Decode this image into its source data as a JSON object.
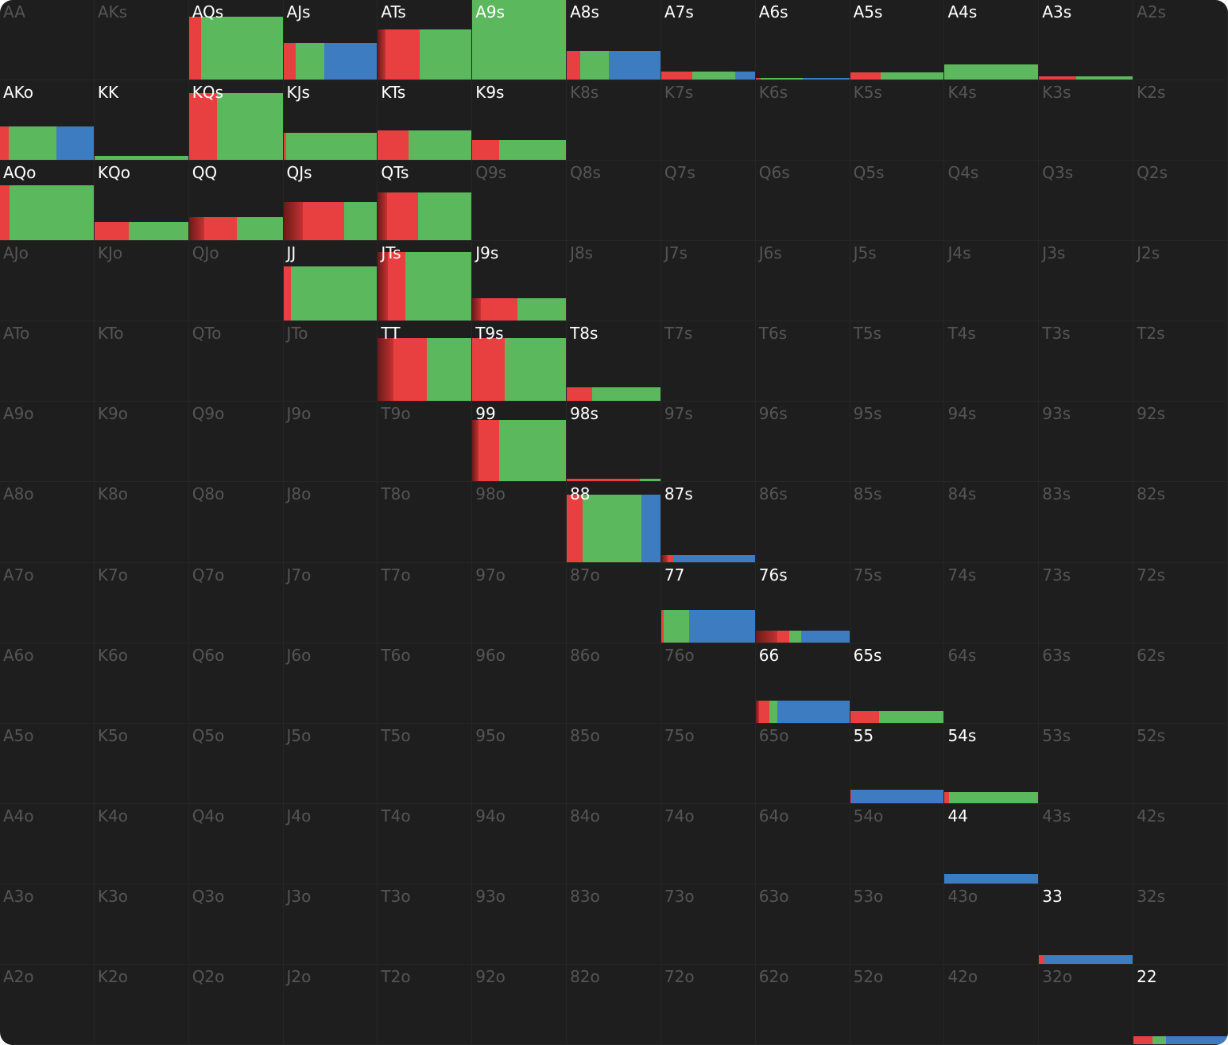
{
  "action_colors": [
    "#8a2424",
    "#e84040",
    "#5cb85c",
    "#3e7cc2"
  ],
  "rows": [
    [
      {
        "hand": "AA"
      },
      {
        "hand": "AKs"
      },
      {
        "hand": "AQs",
        "weight": 79,
        "mix": [
          0,
          13,
          87,
          0
        ]
      },
      {
        "hand": "AJs",
        "weight": 46,
        "mix": [
          0,
          13,
          31,
          56
        ]
      },
      {
        "hand": "ATs",
        "weight": 63,
        "mix": [
          8,
          37,
          55,
          0
        ]
      },
      {
        "hand": "A9s",
        "weight": 100,
        "mix": [
          0,
          0,
          100,
          0
        ]
      },
      {
        "hand": "A8s",
        "weight": 36,
        "mix": [
          0,
          14,
          31,
          55
        ]
      },
      {
        "hand": "A7s",
        "weight": 10,
        "mix": [
          0,
          33,
          46,
          21
        ]
      },
      {
        "hand": "A6s",
        "weight": 2,
        "mix": [
          0,
          5,
          45,
          50
        ]
      },
      {
        "hand": "A5s",
        "weight": 9,
        "mix": [
          0,
          33,
          67,
          0
        ]
      },
      {
        "hand": "A4s",
        "weight": 19,
        "mix": [
          0,
          0,
          100,
          0
        ]
      },
      {
        "hand": "A3s",
        "weight": 4,
        "mix": [
          0,
          40,
          60,
          0
        ]
      },
      {
        "hand": "A2s"
      }
    ],
    [
      {
        "hand": "AKo",
        "weight": 42,
        "mix": [
          0,
          9,
          51,
          40
        ]
      },
      {
        "hand": "KK",
        "weight": 5,
        "mix": [
          0,
          0,
          100,
          0
        ]
      },
      {
        "hand": "KQs",
        "weight": 84,
        "mix": [
          0,
          30,
          70,
          0
        ]
      },
      {
        "hand": "KJs",
        "weight": 34,
        "mix": [
          0,
          3,
          97,
          0
        ]
      },
      {
        "hand": "KTs",
        "weight": 37,
        "mix": [
          0,
          33,
          67,
          0
        ]
      },
      {
        "hand": "K9s",
        "weight": 25,
        "mix": [
          0,
          29,
          71,
          0
        ]
      },
      {
        "hand": "K8s"
      },
      {
        "hand": "K7s"
      },
      {
        "hand": "K6s"
      },
      {
        "hand": "K5s"
      },
      {
        "hand": "K4s"
      },
      {
        "hand": "K3s"
      },
      {
        "hand": "K2s"
      }
    ],
    [
      {
        "hand": "AQo",
        "weight": 69,
        "mix": [
          0,
          10,
          90,
          0
        ]
      },
      {
        "hand": "KQo",
        "weight": 23,
        "mix": [
          0,
          37,
          63,
          0
        ]
      },
      {
        "hand": "QQ",
        "weight": 29,
        "mix": [
          16,
          35,
          49,
          0
        ]
      },
      {
        "hand": "QJs",
        "weight": 48,
        "mix": [
          21,
          44,
          35,
          0
        ]
      },
      {
        "hand": "QTs",
        "weight": 60,
        "mix": [
          10,
          33,
          57,
          0
        ]
      },
      {
        "hand": "Q9s"
      },
      {
        "hand": "Q8s"
      },
      {
        "hand": "Q7s"
      },
      {
        "hand": "Q6s"
      },
      {
        "hand": "Q5s"
      },
      {
        "hand": "Q4s"
      },
      {
        "hand": "Q3s"
      },
      {
        "hand": "Q2s"
      }
    ],
    [
      {
        "hand": "AJo"
      },
      {
        "hand": "KJo"
      },
      {
        "hand": "QJo"
      },
      {
        "hand": "JJ",
        "weight": 68,
        "mix": [
          0,
          8,
          92,
          0
        ]
      },
      {
        "hand": "JTs",
        "weight": 86,
        "mix": [
          11,
          18,
          71,
          0
        ]
      },
      {
        "hand": "J9s",
        "weight": 28,
        "mix": [
          9,
          39,
          52,
          0
        ]
      },
      {
        "hand": "J8s"
      },
      {
        "hand": "J7s"
      },
      {
        "hand": "J6s"
      },
      {
        "hand": "J5s"
      },
      {
        "hand": "J4s"
      },
      {
        "hand": "J3s"
      },
      {
        "hand": "J2s"
      }
    ],
    [
      {
        "hand": "ATo"
      },
      {
        "hand": "KTo"
      },
      {
        "hand": "QTo"
      },
      {
        "hand": "JTo"
      },
      {
        "hand": "TT",
        "weight": 79,
        "mix": [
          17,
          35,
          48,
          0
        ]
      },
      {
        "hand": "T9s",
        "weight": 79,
        "mix": [
          0,
          35,
          65,
          0
        ]
      },
      {
        "hand": "T8s",
        "weight": 17,
        "mix": [
          0,
          27,
          73,
          0
        ]
      },
      {
        "hand": "T7s"
      },
      {
        "hand": "T6s"
      },
      {
        "hand": "T5s"
      },
      {
        "hand": "T4s"
      },
      {
        "hand": "T3s"
      },
      {
        "hand": "T2s"
      }
    ],
    [
      {
        "hand": "A9o"
      },
      {
        "hand": "K9o"
      },
      {
        "hand": "Q9o"
      },
      {
        "hand": "J9o"
      },
      {
        "hand": "T9o"
      },
      {
        "hand": "99",
        "weight": 77,
        "mix": [
          7,
          22,
          71,
          0
        ]
      },
      {
        "hand": "98s",
        "weight": 3,
        "mix": [
          0,
          78,
          22,
          0
        ]
      },
      {
        "hand": "97s"
      },
      {
        "hand": "96s"
      },
      {
        "hand": "95s"
      },
      {
        "hand": "94s"
      },
      {
        "hand": "93s"
      },
      {
        "hand": "92s"
      }
    ],
    [
      {
        "hand": "A8o"
      },
      {
        "hand": "K8o"
      },
      {
        "hand": "Q8o"
      },
      {
        "hand": "J8o"
      },
      {
        "hand": "T8o"
      },
      {
        "hand": "98o"
      },
      {
        "hand": "88",
        "weight": 84,
        "mix": [
          0,
          17,
          63,
          20
        ]
      },
      {
        "hand": "87s",
        "weight": 9,
        "mix": [
          7,
          7,
          0,
          86
        ]
      },
      {
        "hand": "86s"
      },
      {
        "hand": "85s"
      },
      {
        "hand": "84s"
      },
      {
        "hand": "83s"
      },
      {
        "hand": "82s"
      }
    ],
    [
      {
        "hand": "A7o"
      },
      {
        "hand": "K7o"
      },
      {
        "hand": "Q7o"
      },
      {
        "hand": "J7o"
      },
      {
        "hand": "T7o"
      },
      {
        "hand": "97o"
      },
      {
        "hand": "87o"
      },
      {
        "hand": "77",
        "weight": 41,
        "mix": [
          0,
          3,
          27,
          70
        ]
      },
      {
        "hand": "76s",
        "weight": 15,
        "mix": [
          23,
          13,
          13,
          51
        ]
      },
      {
        "hand": "75s"
      },
      {
        "hand": "74s"
      },
      {
        "hand": "73s"
      },
      {
        "hand": "72s"
      }
    ],
    [
      {
        "hand": "A6o"
      },
      {
        "hand": "K6o"
      },
      {
        "hand": "Q6o"
      },
      {
        "hand": "J6o"
      },
      {
        "hand": "T6o"
      },
      {
        "hand": "96o"
      },
      {
        "hand": "86o"
      },
      {
        "hand": "76o"
      },
      {
        "hand": "66",
        "weight": 28,
        "mix": [
          4,
          11,
          8,
          77
        ]
      },
      {
        "hand": "65s",
        "weight": 15,
        "mix": [
          0,
          31,
          69,
          0
        ]
      },
      {
        "hand": "64s"
      },
      {
        "hand": "63s"
      },
      {
        "hand": "62s"
      }
    ],
    [
      {
        "hand": "A5o"
      },
      {
        "hand": "K5o"
      },
      {
        "hand": "Q5o"
      },
      {
        "hand": "J5o"
      },
      {
        "hand": "T5o"
      },
      {
        "hand": "95o"
      },
      {
        "hand": "85o"
      },
      {
        "hand": "75o"
      },
      {
        "hand": "65o"
      },
      {
        "hand": "55",
        "weight": 17,
        "mix": [
          0,
          2,
          0,
          98
        ]
      },
      {
        "hand": "54s",
        "weight": 14,
        "mix": [
          0,
          5,
          95,
          0
        ]
      },
      {
        "hand": "53s"
      },
      {
        "hand": "52s"
      }
    ],
    [
      {
        "hand": "A4o"
      },
      {
        "hand": "K4o"
      },
      {
        "hand": "Q4o"
      },
      {
        "hand": "J4o"
      },
      {
        "hand": "T4o"
      },
      {
        "hand": "94o"
      },
      {
        "hand": "84o"
      },
      {
        "hand": "74o"
      },
      {
        "hand": "64o"
      },
      {
        "hand": "54o"
      },
      {
        "hand": "44",
        "weight": 12,
        "mix": [
          0,
          0,
          0,
          100
        ]
      },
      {
        "hand": "43s"
      },
      {
        "hand": "42s"
      }
    ],
    [
      {
        "hand": "A3o"
      },
      {
        "hand": "K3o"
      },
      {
        "hand": "Q3o"
      },
      {
        "hand": "J3o"
      },
      {
        "hand": "T3o"
      },
      {
        "hand": "93o"
      },
      {
        "hand": "83o"
      },
      {
        "hand": "73o"
      },
      {
        "hand": "63o"
      },
      {
        "hand": "53o"
      },
      {
        "hand": "43o"
      },
      {
        "hand": "33",
        "weight": 11,
        "mix": [
          0,
          6,
          0,
          94
        ]
      },
      {
        "hand": "32s"
      }
    ],
    [
      {
        "hand": "A2o"
      },
      {
        "hand": "K2o"
      },
      {
        "hand": "Q2o"
      },
      {
        "hand": "J2o"
      },
      {
        "hand": "T2o"
      },
      {
        "hand": "92o"
      },
      {
        "hand": "82o"
      },
      {
        "hand": "72o"
      },
      {
        "hand": "62o"
      },
      {
        "hand": "52o"
      },
      {
        "hand": "42o"
      },
      {
        "hand": "32o"
      },
      {
        "hand": "22",
        "weight": 10,
        "mix": [
          0,
          20,
          15,
          65
        ]
      }
    ]
  ]
}
